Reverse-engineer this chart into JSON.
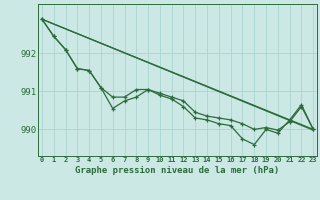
{
  "xlabel": "Graphe pression niveau de la mer (hPa)",
  "background_color": "#cce8e4",
  "grid_color": "#aad4d0",
  "line_color": "#2d6b3c",
  "ylim": [
    989.3,
    993.3
  ],
  "yticks": [
    990,
    991,
    992
  ],
  "xticks": [
    0,
    1,
    2,
    3,
    4,
    5,
    6,
    7,
    8,
    9,
    10,
    11,
    12,
    13,
    14,
    15,
    16,
    17,
    18,
    19,
    20,
    21,
    22,
    23
  ],
  "lines_with_markers": [
    [
      992.9,
      992.45,
      992.1,
      991.6,
      991.55,
      991.1,
      990.85,
      990.85,
      991.05,
      991.05,
      990.95,
      990.85,
      990.75,
      990.45,
      990.35,
      990.3,
      990.25,
      990.15,
      990.0,
      990.05,
      989.98,
      990.2,
      990.6,
      990.0
    ],
    [
      992.9,
      992.45,
      992.1,
      991.6,
      991.55,
      991.1,
      990.55,
      990.75,
      990.85,
      991.05,
      990.9,
      990.8,
      990.6,
      990.3,
      990.25,
      990.15,
      990.1,
      989.75,
      989.6,
      990.0,
      989.9,
      990.25,
      990.65,
      990.0
    ]
  ],
  "lines_straight": [
    [
      [
        0,
        23
      ],
      [
        992.9,
        990.0
      ]
    ],
    [
      [
        0,
        23
      ],
      [
        992.9,
        989.98
      ]
    ]
  ]
}
